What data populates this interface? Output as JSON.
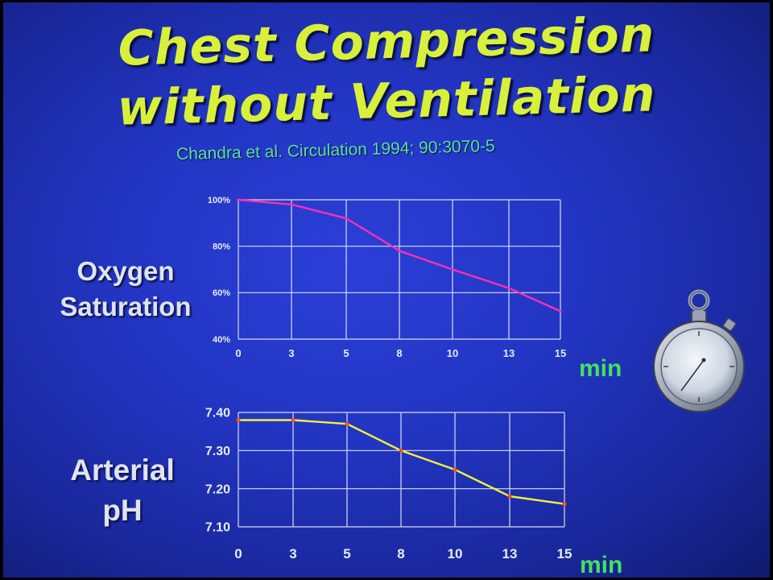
{
  "slide": {
    "title_line1": "Chest Compression",
    "title_line2": "without Ventilation",
    "citation": "Chandra et al. Circulation 1994; 90:3070-5",
    "label_oxygen_line1": "Oxygen",
    "label_oxygen_line2": "Saturation",
    "label_ph_line1": "Arterial",
    "label_ph_line2": "pH",
    "unit_top": "min",
    "unit_bottom": "min"
  },
  "icons": {
    "stopwatch": "stopwatch-icon"
  },
  "colors": {
    "title": "#d9f03a",
    "citation": "#58e0a0",
    "o2_line": "#ff2fb0",
    "ph_line": "#f2f23a",
    "grid": "#d8dcf0"
  },
  "chart_data": [
    {
      "type": "line",
      "x": [
        0,
        3,
        5,
        8,
        10,
        13,
        15
      ],
      "x_tick_labels": [
        "0",
        "3",
        "5",
        "8",
        "10",
        "13",
        "15"
      ],
      "y_tick_labels": [
        "100%",
        "80%",
        "60%",
        "40%"
      ],
      "ylim": [
        40,
        100
      ],
      "series": [
        {
          "values": [
            100,
            98,
            92,
            78,
            70,
            62,
            52
          ]
        }
      ],
      "grid": true
    },
    {
      "type": "line",
      "x": [
        0,
        3,
        5,
        8,
        10,
        13,
        15
      ],
      "x_tick_labels": [
        "0",
        "3",
        "5",
        "8",
        "10",
        "13",
        "15"
      ],
      "y_tick_labels": [
        "7.40",
        "7.30",
        "7.20",
        "7.10"
      ],
      "ylim": [
        7.1,
        7.4
      ],
      "series": [
        {
          "values": [
            7.38,
            7.38,
            7.37,
            7.3,
            7.25,
            7.18,
            7.16
          ]
        }
      ],
      "grid": true
    }
  ]
}
